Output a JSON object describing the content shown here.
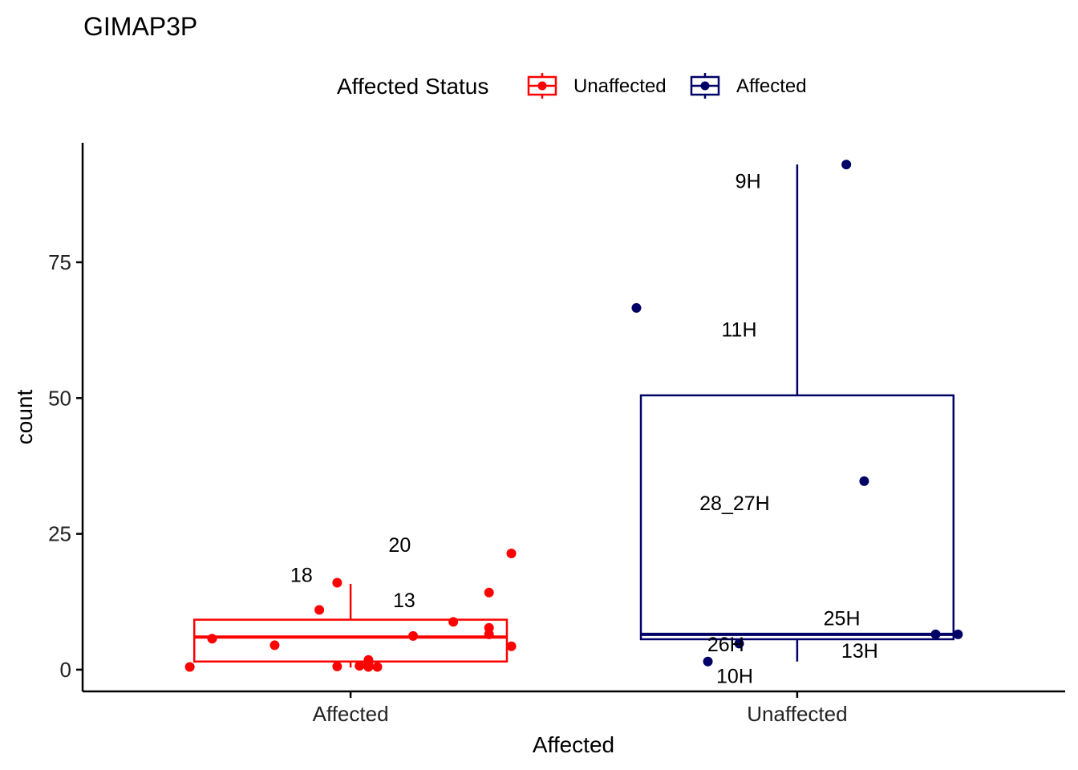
{
  "chart_data": {
    "type": "box",
    "title": "GIMAP3P",
    "xlabel": "Affected",
    "ylabel": "count",
    "ylim": [
      -4,
      97
    ],
    "y_ticks": [
      0,
      25,
      50,
      75
    ],
    "categories": [
      "Affected",
      "Unaffected"
    ],
    "grid": false,
    "legend": {
      "title": "Affected Status",
      "position": "top",
      "entries": [
        {
          "label": "Unaffected",
          "color": "#FF0000"
        },
        {
          "label": "Affected",
          "color": "#000066"
        }
      ]
    },
    "series": [
      {
        "category": "Affected",
        "color": "#FF0000",
        "box": {
          "q1": 1.5,
          "median": 6.0,
          "q3": 9.2,
          "whisker_low": 0.4,
          "whisker_high": 15.8
        },
        "points": [
          {
            "x_offset": -0.36,
            "y": 0.5
          },
          {
            "x_offset": -0.31,
            "y": 5.7
          },
          {
            "x_offset": -0.17,
            "y": 4.5
          },
          {
            "x_offset": -0.07,
            "y": 11.0
          },
          {
            "x_offset": -0.03,
            "y": 0.6
          },
          {
            "x_offset": -0.03,
            "y": 16.0
          },
          {
            "x_offset": 0.02,
            "y": 0.7
          },
          {
            "x_offset": 0.04,
            "y": 0.5
          },
          {
            "x_offset": 0.04,
            "y": 1.2
          },
          {
            "x_offset": 0.04,
            "y": 1.8
          },
          {
            "x_offset": 0.06,
            "y": 0.5
          },
          {
            "x_offset": 0.14,
            "y": 6.2
          },
          {
            "x_offset": 0.23,
            "y": 8.8
          },
          {
            "x_offset": 0.31,
            "y": 7.7
          },
          {
            "x_offset": 0.31,
            "y": 6.5
          },
          {
            "x_offset": 0.31,
            "y": 14.2
          },
          {
            "x_offset": 0.36,
            "y": 4.3
          },
          {
            "x_offset": 0.36,
            "y": 21.4
          }
        ],
        "labels": [
          {
            "text": "20",
            "x_offset": 0.11,
            "y": 23.0
          },
          {
            "text": "18",
            "x_offset": -0.11,
            "y": 17.5
          },
          {
            "text": "13",
            "x_offset": 0.12,
            "y": 12.8
          }
        ]
      },
      {
        "category": "Unaffected",
        "color": "#000066",
        "box": {
          "q1": 5.6,
          "median": 6.5,
          "q3": 50.5,
          "whisker_low": 1.5,
          "whisker_high": 93.0
        },
        "points": [
          {
            "x_offset": -0.36,
            "y": 66.6
          },
          {
            "x_offset": 0.11,
            "y": 93.0
          },
          {
            "x_offset": 0.15,
            "y": 34.7
          },
          {
            "x_offset": -0.2,
            "y": 1.5
          },
          {
            "x_offset": -0.13,
            "y": 4.8
          },
          {
            "x_offset": 0.31,
            "y": 6.5
          },
          {
            "x_offset": 0.36,
            "y": 6.5
          }
        ],
        "labels": [
          {
            "text": "9H",
            "x_offset": -0.11,
            "y": 90.0
          },
          {
            "text": "11H",
            "x_offset": -0.13,
            "y": 62.7
          },
          {
            "text": "28_27H",
            "x_offset": -0.14,
            "y": 30.7
          },
          {
            "text": "25H",
            "x_offset": 0.1,
            "y": 9.5
          },
          {
            "text": "26H",
            "x_offset": -0.16,
            "y": 4.7
          },
          {
            "text": "13H",
            "x_offset": 0.14,
            "y": 3.5
          },
          {
            "text": "10H",
            "x_offset": -0.14,
            "y": -1.1
          }
        ]
      }
    ]
  }
}
